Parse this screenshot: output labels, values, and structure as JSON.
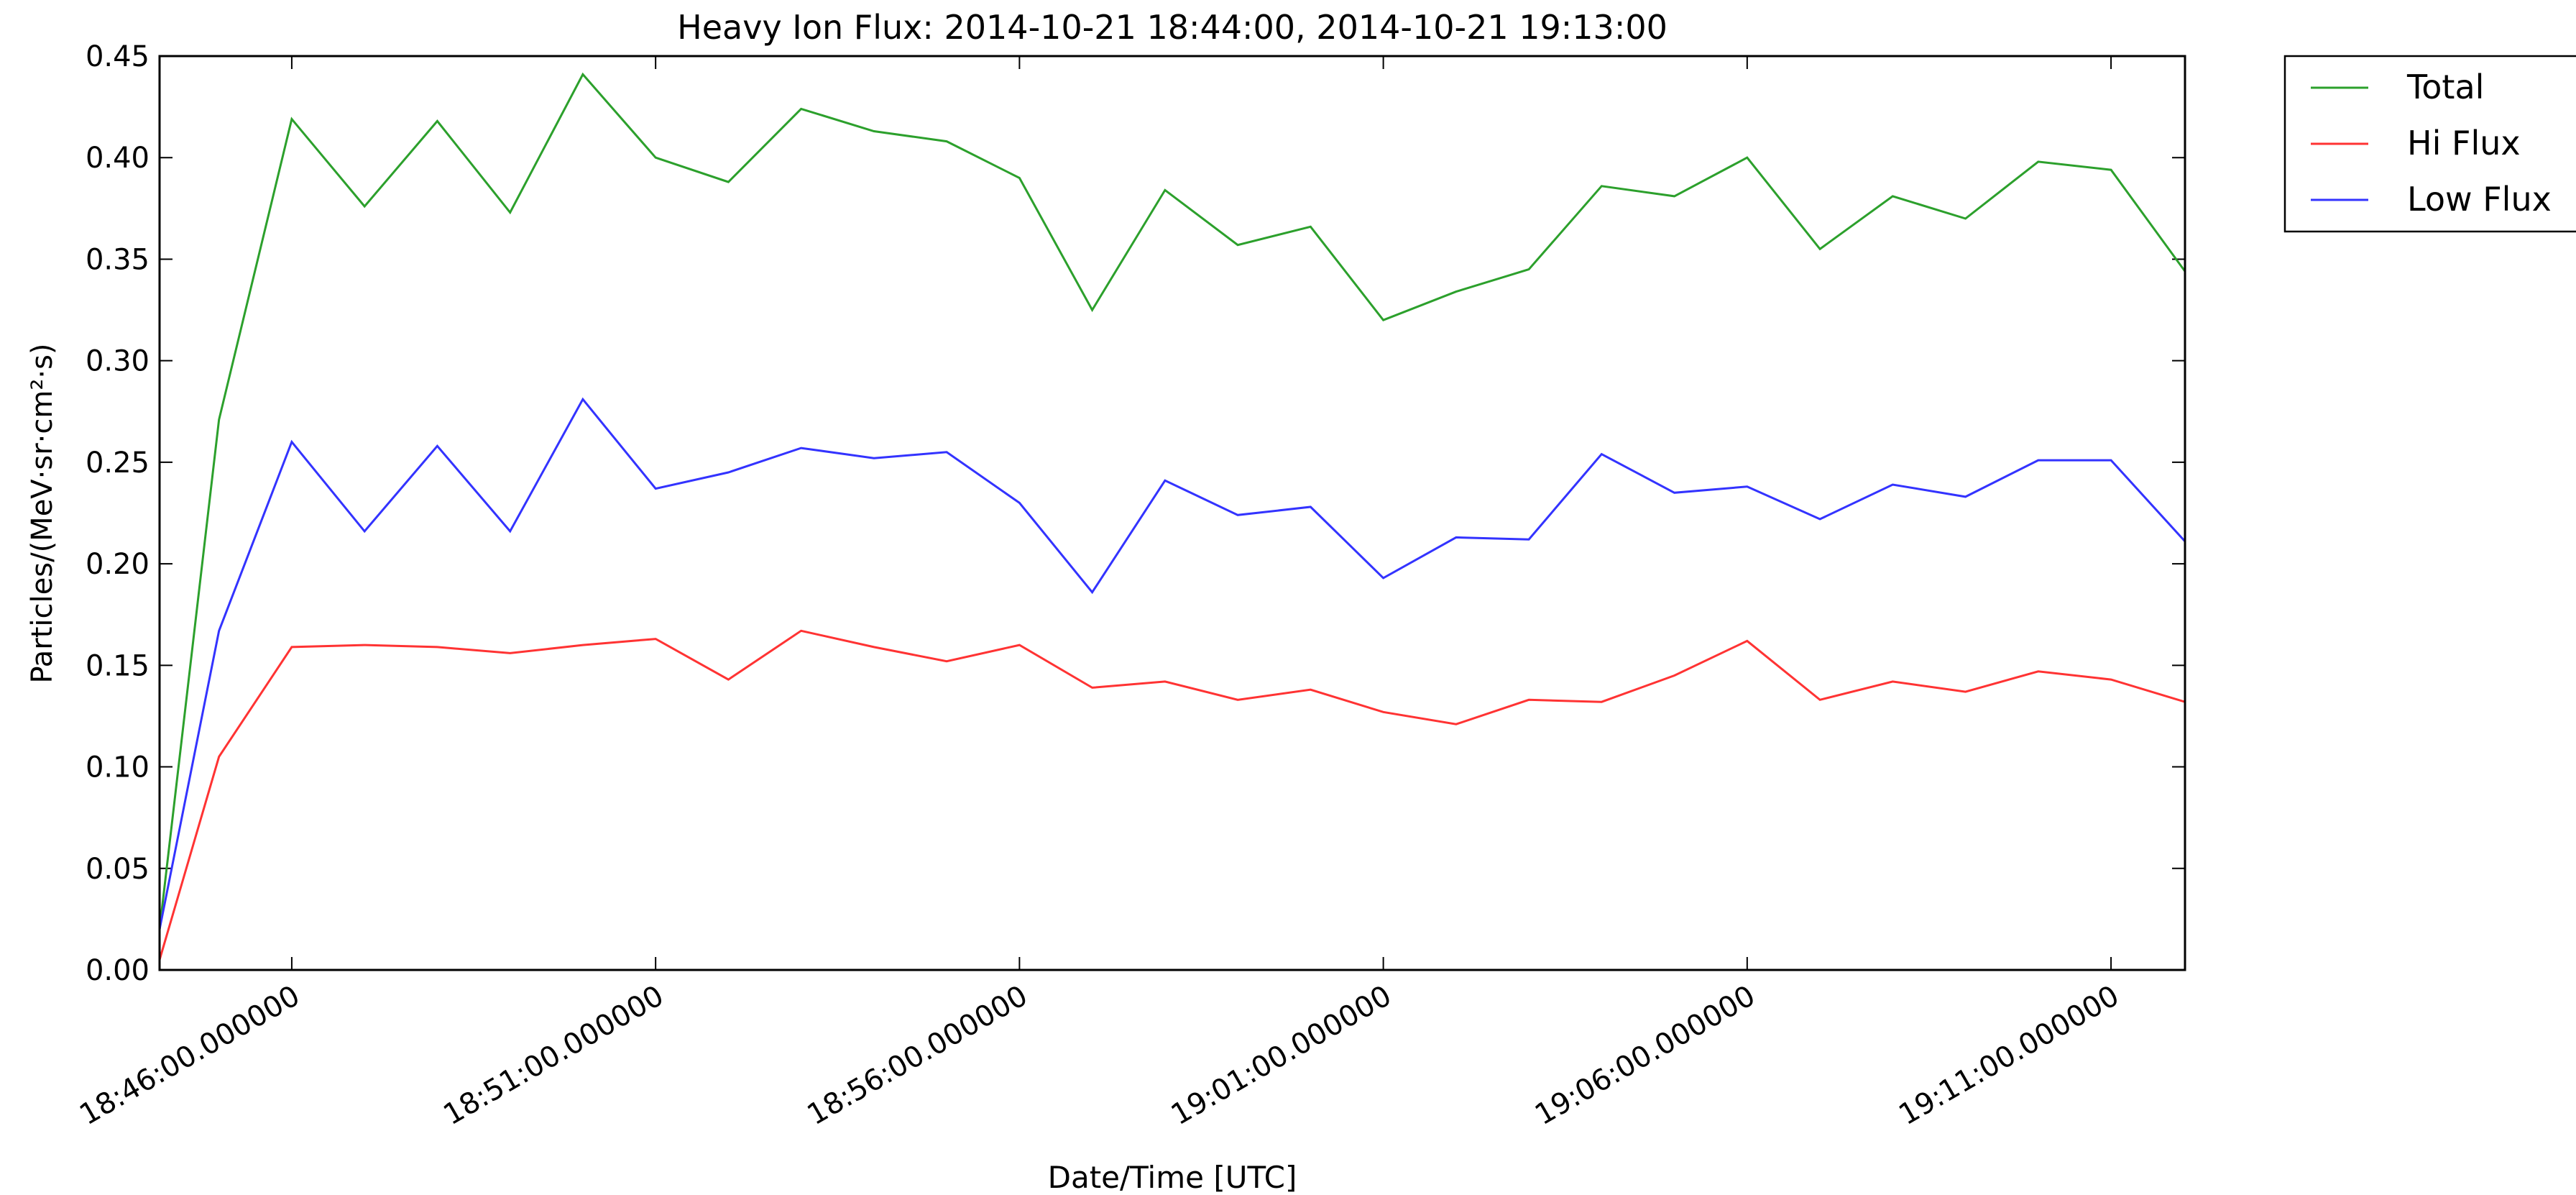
{
  "chart_data": {
    "type": "line",
    "title": "Heavy Ion Flux: 2014-10-21 18:44:00, 2014-10-21 19:13:00",
    "xlabel": "Date/Time [UTC]",
    "ylabel": "Particles/(MeV·sr·cm²·s)",
    "x": [
      "18:44:11",
      "18:45:00",
      "18:46:00",
      "18:47:00",
      "18:48:00",
      "18:49:00",
      "18:50:00",
      "18:51:00",
      "18:52:00",
      "18:53:00",
      "18:54:00",
      "18:55:00",
      "18:56:00",
      "18:57:00",
      "18:58:00",
      "18:59:00",
      "19:00:00",
      "19:01:00",
      "19:02:00",
      "19:03:00",
      "19:04:00",
      "19:05:00",
      "19:06:00",
      "19:07:00",
      "19:08:00",
      "19:09:00",
      "19:10:00",
      "19:11:00",
      "19:12:01"
    ],
    "series": [
      {
        "name": "Total",
        "color": "#2ca02c",
        "values": [
          0.02,
          0.271,
          0.419,
          0.376,
          0.418,
          0.373,
          0.441,
          0.4,
          0.388,
          0.424,
          0.413,
          0.408,
          0.39,
          0.325,
          0.384,
          0.357,
          0.366,
          0.32,
          0.334,
          0.345,
          0.386,
          0.381,
          0.4,
          0.355,
          0.381,
          0.37,
          0.398,
          0.394,
          0.344
        ]
      },
      {
        "name": "Hi Flux",
        "color": "#ff3333",
        "values": [
          0.005,
          0.105,
          0.159,
          0.16,
          0.159,
          0.156,
          0.16,
          0.163,
          0.143,
          0.167,
          0.159,
          0.152,
          0.16,
          0.139,
          0.142,
          0.133,
          0.138,
          0.127,
          0.121,
          0.133,
          0.132,
          0.145,
          0.162,
          0.133,
          0.142,
          0.137,
          0.147,
          0.143,
          0.132
        ]
      },
      {
        "name": "Low Flux",
        "color": "#3333ff",
        "values": [
          0.02,
          0.167,
          0.26,
          0.216,
          0.258,
          0.216,
          0.281,
          0.237,
          0.245,
          0.257,
          0.252,
          0.255,
          0.23,
          0.186,
          0.241,
          0.224,
          0.228,
          0.193,
          0.213,
          0.212,
          0.254,
          0.235,
          0.238,
          0.222,
          0.239,
          0.233,
          0.251,
          0.251,
          0.211
        ]
      }
    ],
    "xlim": [
      "18:44:11",
      "19:12:01"
    ],
    "xticks": [
      "18:46:00.000000",
      "18:51:00.000000",
      "18:56:00.000000",
      "19:01:00.000000",
      "19:06:00.000000",
      "19:11:00.000000"
    ],
    "ylim": [
      0,
      0.45
    ],
    "yticks": [
      {
        "value": 0,
        "label": "0.00"
      },
      {
        "value": 0.05,
        "label": "0.05"
      },
      {
        "value": 0.1,
        "label": "0.10"
      },
      {
        "value": 0.15,
        "label": "0.15"
      },
      {
        "value": 0.2,
        "label": "0.20"
      },
      {
        "value": 0.25,
        "label": "0.25"
      },
      {
        "value": 0.3,
        "label": "0.30"
      },
      {
        "value": 0.35,
        "label": "0.35"
      },
      {
        "value": 0.4,
        "label": "0.40"
      },
      {
        "value": 0.45,
        "label": "0.45"
      }
    ],
    "legend": "outside-upper-right"
  }
}
